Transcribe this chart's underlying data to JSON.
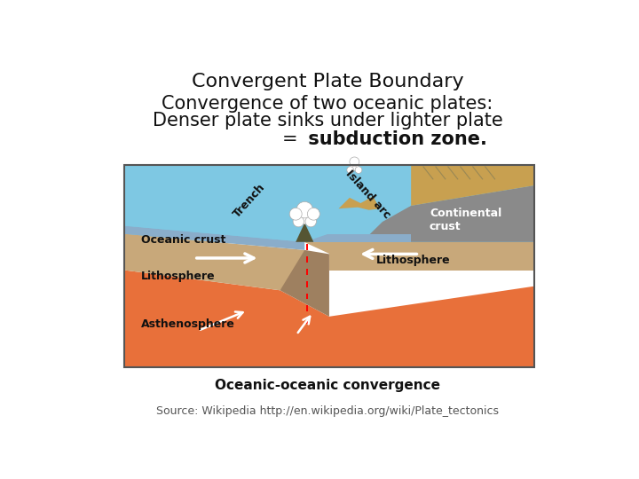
{
  "title": "Convergent Plate Boundary",
  "subtitle_line1": "Convergence of two oceanic plates:",
  "subtitle_line2": "Denser plate sinks under lighter plate",
  "subtitle_plain3": "= subduction zone.",
  "source_text": "Source: Wikipedia http://en.wikipedia.org/wiki/Plate_tectonics",
  "caption": "Oceanic-oceanic convergence",
  "bg_color": "#ffffff",
  "title_fontsize": 16,
  "subtitle_fontsize": 15,
  "source_fontsize": 9,
  "colors": {
    "ocean_blue": "#7ec8e3",
    "lithosphere_tan": "#c8a87a",
    "asthenosphere_orange": "#e8703a",
    "subducting_dark": "#9e8060",
    "oceanic_crust_blue": "#8aadca",
    "continental_gray": "#8a8a8a",
    "land_tan": "#c8a050"
  }
}
